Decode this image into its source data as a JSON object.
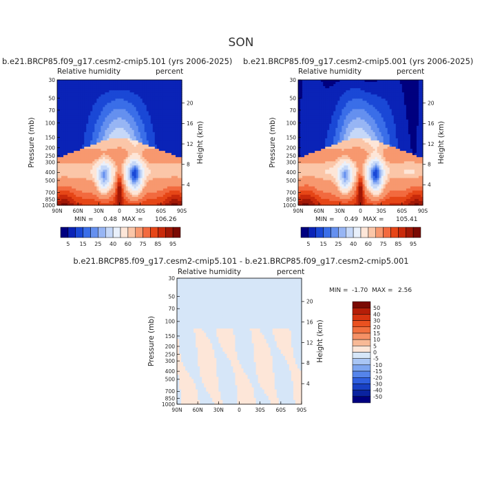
{
  "season": "SON",
  "panels": [
    {
      "title": "b.e21.BRCP85.f09_g17.cesm2-cmip5.101 (yrs 2006-2025)",
      "left_label": "Relative humidity",
      "right_label": "percent",
      "y_axis_label": "Pressure (mb)",
      "y2_axis_label": "Height (km)",
      "min_label": "MIN =",
      "min_value": "0.48",
      "max_label": "MAX =",
      "max_value": "106.26"
    },
    {
      "title": "b.e21.BRCP85.f09_g17.cesm2-cmip5.001 (yrs 2006-2025)",
      "left_label": "Relative humidity",
      "right_label": "percent",
      "y_axis_label": "Pressure (mb)",
      "y2_axis_label": "Height (km)",
      "min_label": "MIN =",
      "min_value": "0.49",
      "max_label": "MAX =",
      "max_value": "105.41"
    },
    {
      "title": "b.e21.BRCP85.f09_g17.cesm2-cmip5.101 - b.e21.BRCP85.f09_g17.cesm2-cmip5.001",
      "left_label": "Relative humidity",
      "right_label": "percent",
      "y_axis_label": "Pressure (mb)",
      "y2_axis_label": "Height (km)",
      "min_label": "MIN =",
      "min_value": "-1.70",
      "max_label": "MAX =",
      "max_value": "2.56"
    }
  ],
  "chart_data": [
    {
      "type": "heatmap",
      "x_ticks": [
        "90N",
        "60N",
        "30N",
        "0",
        "30S",
        "60S",
        "90S"
      ],
      "x_tick_lat": [
        90,
        60,
        30,
        0,
        -30,
        -60,
        -90
      ],
      "y_ticks": [
        "1000",
        "850",
        "700",
        "500",
        "400",
        "300",
        "250",
        "200",
        "150",
        "100",
        "70",
        "50",
        "30"
      ],
      "y_tick_p": [
        1000,
        850,
        700,
        500,
        400,
        300,
        250,
        200,
        150,
        100,
        70,
        50,
        30
      ],
      "y2_ticks": [
        "4",
        "8",
        "12",
        "16",
        "20"
      ],
      "y2_tick_km": [
        4,
        8,
        12,
        16,
        20
      ],
      "xlim": [
        90,
        -90
      ],
      "ylim": [
        1000,
        30
      ],
      "y_scale": "log",
      "colorbar": {
        "orientation": "horizontal",
        "labels": [
          "5",
          "15",
          "25",
          "40",
          "60",
          "75",
          "85",
          "95"
        ],
        "colors": [
          "#00007f",
          "#0a23b7",
          "#1a48d6",
          "#3a6ee8",
          "#6590ef",
          "#97b5f4",
          "#c6d8f8",
          "#e9f0fb",
          "#fde6d8",
          "#fbc6a8",
          "#f7986f",
          "#f26a3f",
          "#e64617",
          "#c92a0b",
          "#a11806",
          "#7a0a03"
        ]
      }
    },
    {
      "type": "heatmap",
      "x_ticks": [
        "90N",
        "60N",
        "30N",
        "0",
        "30S",
        "60S",
        "90S"
      ],
      "x_tick_lat": [
        90,
        60,
        30,
        0,
        -30,
        -60,
        -90
      ],
      "y_ticks": [
        "1000",
        "850",
        "700",
        "500",
        "400",
        "300",
        "250",
        "200",
        "150",
        "100",
        "70",
        "50",
        "30"
      ],
      "y_tick_p": [
        1000,
        850,
        700,
        500,
        400,
        300,
        250,
        200,
        150,
        100,
        70,
        50,
        30
      ],
      "y2_ticks": [
        "4",
        "8",
        "12",
        "16",
        "20"
      ],
      "y2_tick_km": [
        4,
        8,
        12,
        16,
        20
      ],
      "xlim": [
        90,
        -90
      ],
      "ylim": [
        1000,
        30
      ],
      "y_scale": "log",
      "colorbar": {
        "orientation": "horizontal",
        "labels": [
          "5",
          "15",
          "25",
          "40",
          "60",
          "75",
          "85",
          "95"
        ],
        "colors": [
          "#00007f",
          "#0a23b7",
          "#1a48d6",
          "#3a6ee8",
          "#6590ef",
          "#97b5f4",
          "#c6d8f8",
          "#e9f0fb",
          "#fde6d8",
          "#fbc6a8",
          "#f7986f",
          "#f26a3f",
          "#e64617",
          "#c92a0b",
          "#a11806",
          "#7a0a03"
        ]
      }
    },
    {
      "type": "heatmap",
      "x_ticks": [
        "90N",
        "60N",
        "30N",
        "0",
        "30S",
        "60S",
        "90S"
      ],
      "x_tick_lat": [
        90,
        60,
        30,
        0,
        -30,
        -60,
        -90
      ],
      "y_ticks": [
        "1000",
        "850",
        "700",
        "500",
        "400",
        "300",
        "250",
        "200",
        "150",
        "100",
        "70",
        "50",
        "30"
      ],
      "y_tick_p": [
        1000,
        850,
        700,
        500,
        400,
        300,
        250,
        200,
        150,
        100,
        70,
        50,
        30
      ],
      "y2_ticks": [
        "4",
        "8",
        "12",
        "16",
        "20"
      ],
      "y2_tick_km": [
        4,
        8,
        12,
        16,
        20
      ],
      "xlim": [
        90,
        -90
      ],
      "ylim": [
        1000,
        30
      ],
      "y_scale": "log",
      "colorbar": {
        "orientation": "vertical",
        "labels": [
          "50",
          "40",
          "30",
          "20",
          "15",
          "10",
          "5",
          "0",
          "-5",
          "-10",
          "-15",
          "-20",
          "-30",
          "-40",
          "-50"
        ],
        "colors": [
          "#7a0a03",
          "#b51e08",
          "#d63410",
          "#ea5120",
          "#f1703f",
          "#f59166",
          "#f8b996",
          "#fde6d8",
          "#d6e6f8",
          "#a9c6f5",
          "#7ea6f0",
          "#5584ea",
          "#2f5fdf",
          "#1840c4",
          "#0a23a0",
          "#00007f"
        ]
      }
    }
  ]
}
